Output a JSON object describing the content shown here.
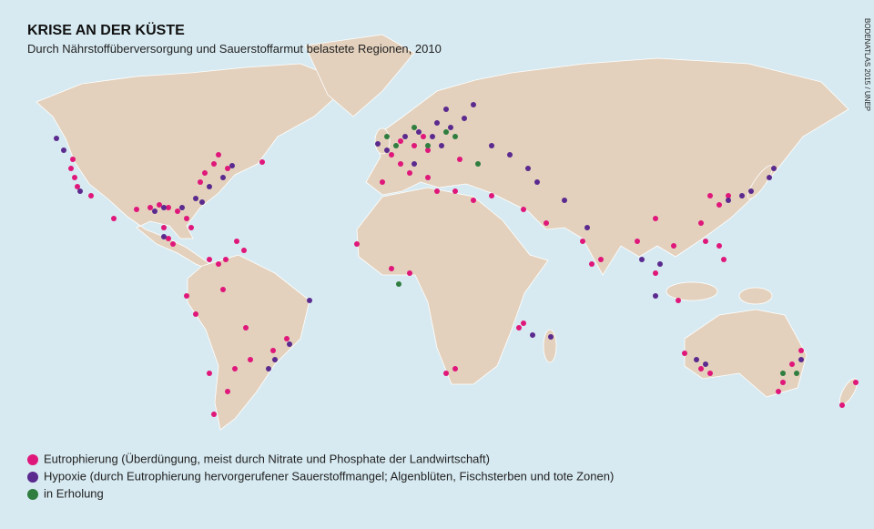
{
  "title": "KRISE AN DER KÜSTE",
  "subtitle": "Durch Nährstoffüberversorgung und Sauerstoffarmut belastete Regionen, 2010",
  "credit": "BODENATLAS 2015 / UNEP",
  "legend": [
    {
      "label": "Eutrophierung (Überdüngung, meist durch Nitrate und Phosphate der Landwirtschaft)",
      "color": "#e0177a"
    },
    {
      "label": "Hypoxie (durch Eutrophierung hervorgerufener Sauerstoffmangel; Algenblüten, Fischsterben und tote Zonen)",
      "color": "#5b2a8e"
    },
    {
      "label": "in Erholung",
      "color": "#2f7d3f"
    }
  ]
}
